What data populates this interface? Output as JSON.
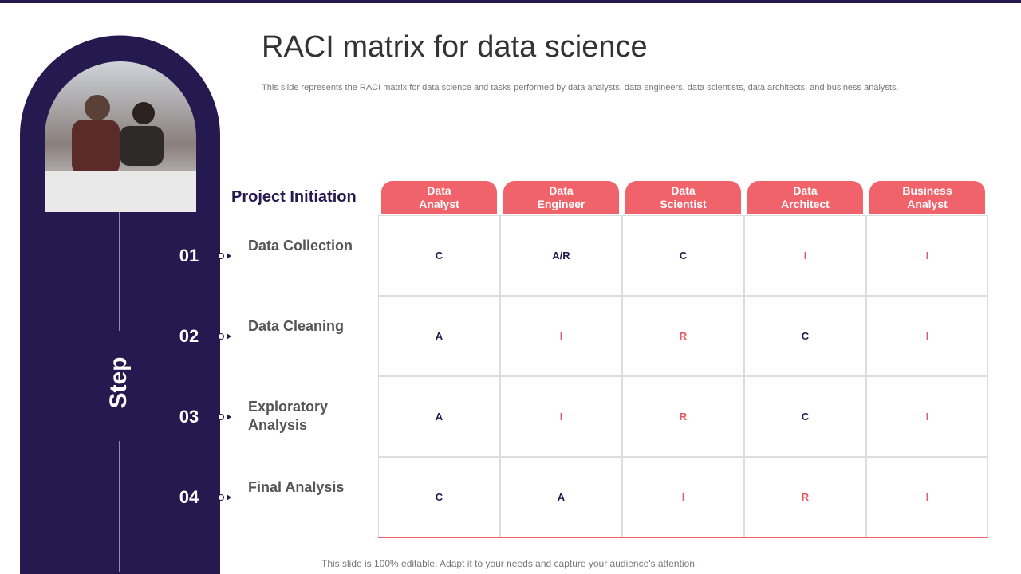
{
  "title": "RACI matrix for data science",
  "description": "This slide represents the RACI matrix for data science and tasks performed by data analysts, data engineers, data scientists, data architects, and business analysts.",
  "footer": "This slide is 100% editable. Adapt it to your needs and capture your audience's attention.",
  "side_label": "Step",
  "section": "Project Initiation",
  "columns": [
    "Data Analyst",
    "Data Engineer",
    "Data Scientist",
    "Data Architect",
    "Business Analyst"
  ],
  "rows": [
    {
      "number": "01",
      "label": "Data Collection",
      "cells": [
        "C",
        "A/R",
        "C",
        "I",
        "I"
      ]
    },
    {
      "number": "02",
      "label": "Data Cleaning",
      "cells": [
        "A",
        "I",
        "R",
        "C",
        "I"
      ]
    },
    {
      "number": "03",
      "label": "Exploratory Analysis",
      "cells": [
        "A",
        "I",
        "R",
        "C",
        "I"
      ]
    },
    {
      "number": "04",
      "label": "Final Analysis",
      "cells": [
        "C",
        "A",
        "I",
        "R",
        "I"
      ]
    }
  ],
  "letter_colors": {
    "A": "#241a4f",
    "C": "#241a4f",
    "A/R": "#241a4f",
    "R": "#e8585f",
    "I": "#e8585f"
  }
}
